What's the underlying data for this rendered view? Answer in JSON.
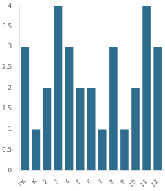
{
  "chart_data": {
    "type": "bar",
    "categories": [
      "PK",
      "K",
      "2",
      "3",
      "4",
      "5",
      "6",
      "7",
      "8",
      "9",
      "10",
      "11",
      "12"
    ],
    "values": [
      3,
      1,
      2,
      4,
      3,
      2,
      2,
      1,
      3,
      1,
      2,
      4,
      3
    ],
    "color": "#2e6d8e",
    "ylim": [
      0,
      4
    ],
    "yticks": [
      0,
      0.5,
      1,
      1.5,
      2,
      2.5,
      3,
      3.5,
      4
    ],
    "grid": false
  }
}
